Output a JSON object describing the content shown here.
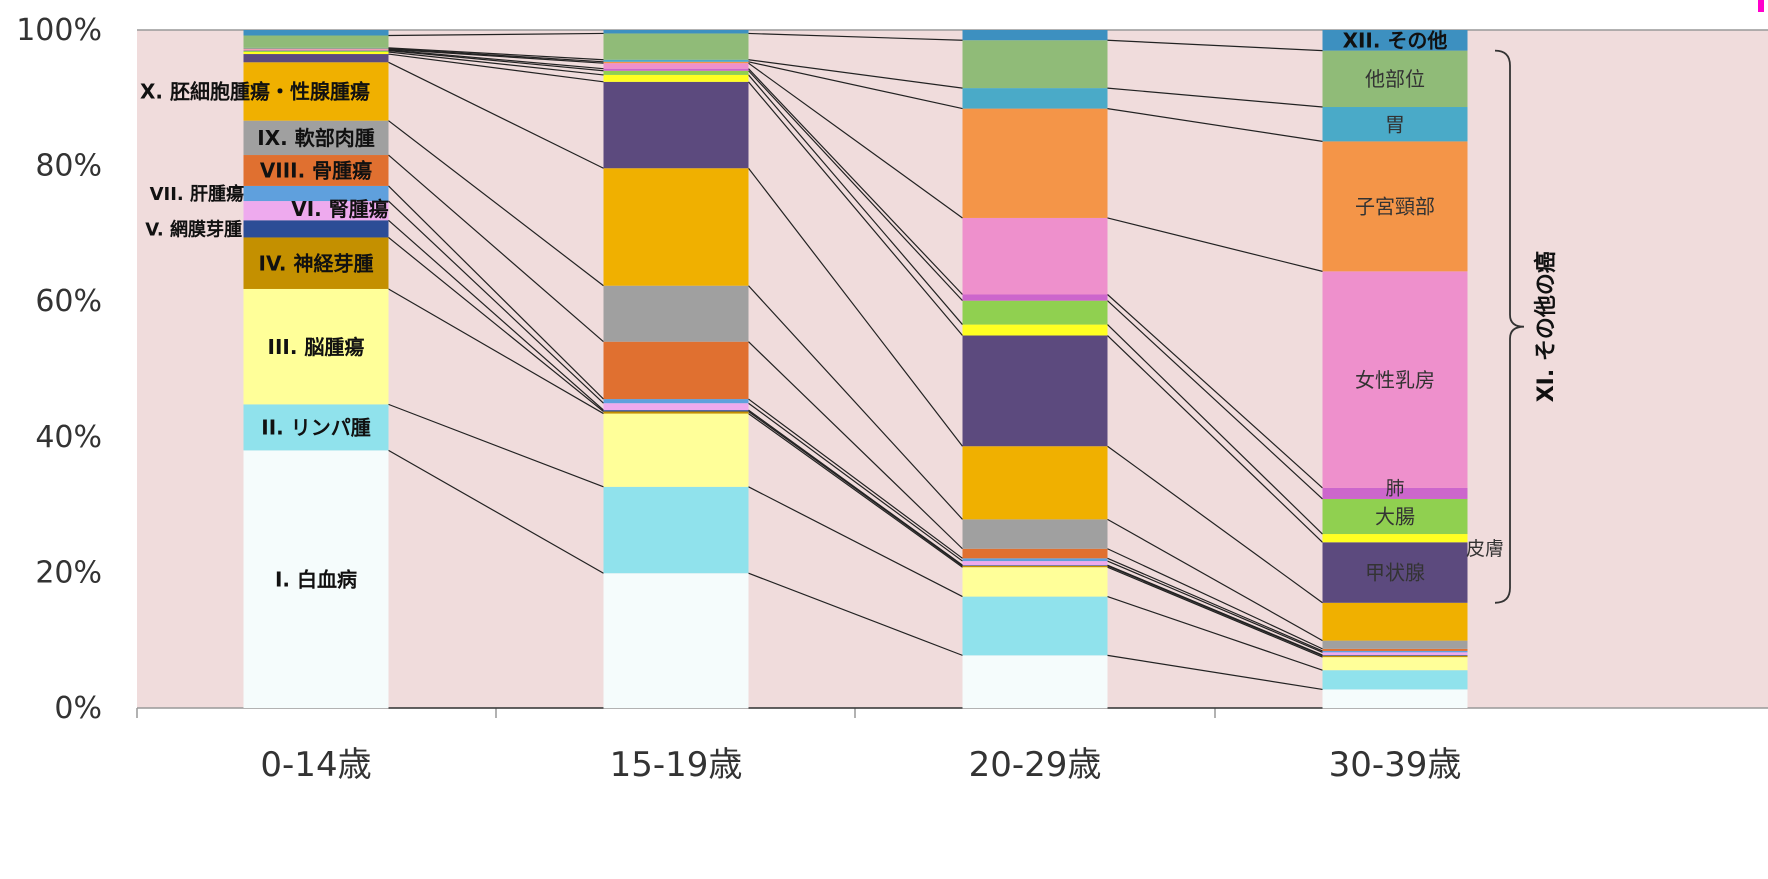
{
  "chart_data": {
    "type": "bar",
    "stacked": "percent",
    "grid": false,
    "legend": "none",
    "plot_background": "#f0dcdc",
    "categories": [
      "0-14歳",
      "15-19歳",
      "20-29歳",
      "30-39歳"
    ],
    "ylim": [
      0,
      100
    ],
    "yticks": [
      "0%",
      "20%",
      "40%",
      "60%",
      "80%",
      "100%"
    ],
    "series": [
      {
        "name": "I. 白血病",
        "color": "#f5fcfc",
        "values": [
          37.5,
          19.5,
          7.7,
          2.7
        ]
      },
      {
        "name": "II. リンパ腫",
        "color": "#90e2ec",
        "values": [
          6.7,
          12.5,
          8.6,
          2.8
        ]
      },
      {
        "name": "III. 脳腫瘍",
        "color": "#ffff99",
        "values": [
          16.8,
          10.6,
          4.3,
          1.9
        ]
      },
      {
        "name": "IV. 神経芽腫",
        "color": "#c49000",
        "values": [
          7.5,
          0.3,
          0.2,
          0.2
        ]
      },
      {
        "name": "V. 網膜芽腫",
        "color": "#2c4d96",
        "values": [
          2.5,
          0.2,
          0.1,
          0.1
        ]
      },
      {
        "name": "VI. 腎腫瘍",
        "color": "#eeaaee",
        "values": [
          2.8,
          1.0,
          0.6,
          0.4
        ]
      },
      {
        "name": "VII. 肝腫瘍",
        "color": "#5fa0dd",
        "values": [
          2.2,
          0.6,
          0.4,
          0.2
        ]
      },
      {
        "name": "VIII. 骨腫瘍",
        "color": "#e07030",
        "values": [
          4.5,
          8.3,
          1.4,
          0.3
        ]
      },
      {
        "name": "IX. 軟部肉腫",
        "color": "#a0a0a0",
        "values": [
          5.0,
          8.1,
          4.3,
          1.2
        ]
      },
      {
        "name": "X. 胚細胞腫瘍・性腺腫瘍",
        "color": "#f0b000",
        "values": [
          8.5,
          17.0,
          10.7,
          5.5
        ]
      },
      {
        "name": "甲状腺",
        "color": "#5c4a7e",
        "values": [
          1.2,
          12.5,
          16.2,
          8.8
        ]
      },
      {
        "name": "皮膚",
        "color": "#ffff22",
        "values": [
          0.3,
          1.0,
          1.6,
          1.2
        ]
      },
      {
        "name": "大腸",
        "color": "#90d050",
        "values": [
          0.2,
          0.6,
          3.5,
          5.1
        ]
      },
      {
        "name": "肺",
        "color": "#cc66cc",
        "values": [
          0.1,
          0.3,
          0.9,
          1.6
        ]
      },
      {
        "name": "女性乳房",
        "color": "#ee90cc",
        "values": [
          0.1,
          0.8,
          11.2,
          31.5
        ]
      },
      {
        "name": "子宮頸部",
        "color": "#f49548",
        "values": [
          0.1,
          0.2,
          16.0,
          18.9
        ]
      },
      {
        "name": "胃",
        "color": "#4aaac8",
        "values": [
          0.1,
          0.3,
          3.0,
          5.0
        ]
      },
      {
        "name": "他部位",
        "color": "#90bb78",
        "values": [
          1.8,
          3.8,
          7.0,
          8.2
        ]
      },
      {
        "name": "XII. その他",
        "color": "#3d90c0",
        "values": [
          0.8,
          0.5,
          1.5,
          3.0
        ]
      }
    ],
    "bracket_label": "XI. その他の癌",
    "corner_mark_color": "#ff00cc"
  }
}
